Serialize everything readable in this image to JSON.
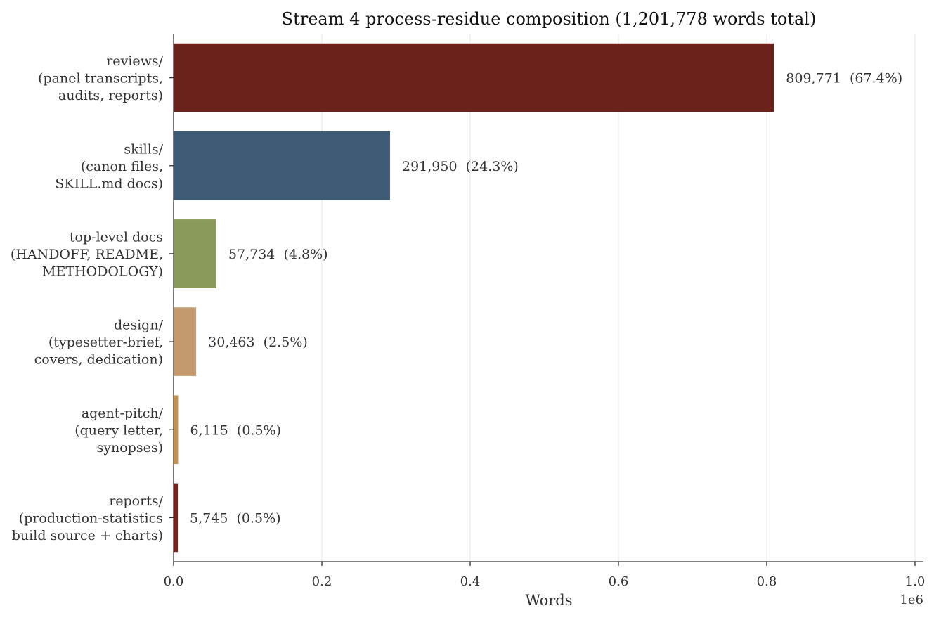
{
  "chart_data": {
    "type": "bar",
    "orientation": "horizontal",
    "title": "Stream 4 process-residue composition (1,201,778 words total)",
    "xlabel": "Words",
    "x_offset_label": "1e6",
    "xlim": [
      0,
      1.0
    ],
    "x_ticks": [
      "0.0",
      "0.2",
      "0.4",
      "0.6",
      "0.8",
      "1.0"
    ],
    "x_tick_values": [
      0,
      0.2,
      0.4,
      0.6,
      0.8,
      1.0
    ],
    "grid": "vertical",
    "categories": [
      [
        "reviews/",
        "(panel transcripts,",
        "audits, reports)"
      ],
      [
        "skills/",
        "(canon files,",
        "SKILL.md docs)"
      ],
      [
        "top-level docs",
        "(HANDOFF, README,",
        "METHODOLOGY)"
      ],
      [
        "design/",
        "(typesetter-brief,",
        "covers, dedication)"
      ],
      [
        "agent-pitch/",
        "(query letter,",
        "synopses)"
      ],
      [
        "reports/",
        "(production-statistics",
        "build source + charts)"
      ]
    ],
    "values": [
      809771,
      291950,
      57734,
      30463,
      6115,
      5745
    ],
    "data_labels": [
      "809,771  (67.4%)",
      "291,950  (24.3%)",
      "57,734  (4.8%)",
      "30,463  (2.5%)",
      "6,115  (0.5%)",
      "5,745  (0.5%)"
    ],
    "colors": [
      "#6b221a",
      "#3e5c76",
      "#8a9a5b",
      "#c49a6c",
      "#c9924a",
      "#7a1e14"
    ]
  }
}
